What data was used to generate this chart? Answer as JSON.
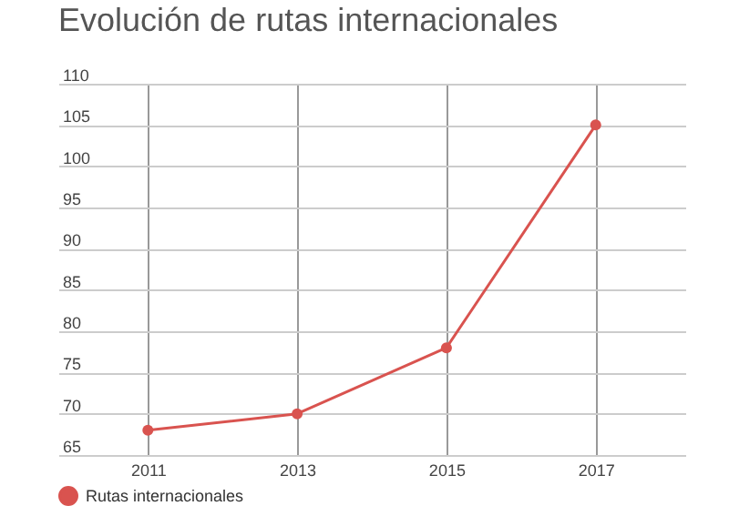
{
  "chart_data": {
    "type": "line",
    "title": "Evolución de rutas internacionales",
    "categories": [
      "2011",
      "2013",
      "2015",
      "2017"
    ],
    "series": [
      {
        "name": "Rutas internacionales",
        "color": "#d9534f",
        "values": [
          68,
          70,
          78,
          105
        ]
      }
    ],
    "ylim": [
      65,
      110
    ],
    "yticks": [
      65,
      70,
      75,
      80,
      85,
      90,
      95,
      100,
      105,
      110
    ],
    "grid": true,
    "legend": "bottom",
    "marker": "circle"
  }
}
